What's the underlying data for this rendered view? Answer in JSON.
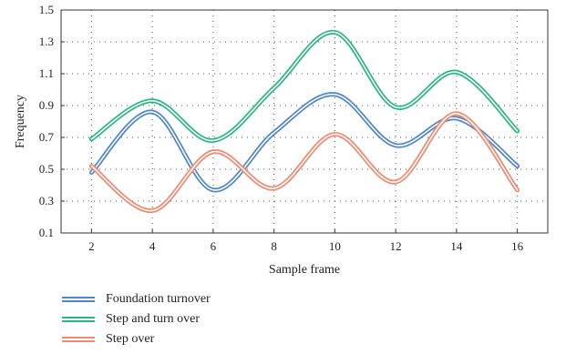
{
  "chart_data": {
    "type": "line",
    "xlabel": "Sample frame",
    "ylabel": "Frequency",
    "xlim": [
      1,
      17
    ],
    "ylim": [
      0.1,
      1.5
    ],
    "xticks": [
      2,
      4,
      6,
      8,
      10,
      12,
      14,
      16
    ],
    "yticks": [
      0.1,
      0.3,
      0.5,
      0.7,
      0.9,
      1.1,
      1.3,
      1.5
    ],
    "ytick_labels": [
      "0.1",
      "0.3",
      "0.5",
      "0.7",
      "0.9",
      "1.1",
      "1.3",
      "1.5"
    ],
    "grid": "dotted",
    "legend_position": "bottom-left",
    "series": [
      {
        "name": "Foundation turnover",
        "color": "#4f86c6",
        "x": [
          2,
          4,
          6,
          8,
          10,
          12,
          14,
          16
        ],
        "values": [
          0.48,
          0.86,
          0.37,
          0.73,
          0.97,
          0.65,
          0.82,
          0.52
        ]
      },
      {
        "name": "Step and turn over",
        "color": "#2bb584",
        "x": [
          2,
          4,
          6,
          8,
          10,
          12,
          14,
          16
        ],
        "values": [
          0.69,
          0.93,
          0.68,
          1.01,
          1.36,
          0.89,
          1.11,
          0.74
        ]
      },
      {
        "name": "Step over",
        "color": "#ee8a72",
        "x": [
          2,
          4,
          6,
          8,
          10,
          12,
          14,
          16
        ],
        "values": [
          0.52,
          0.24,
          0.61,
          0.38,
          0.72,
          0.42,
          0.85,
          0.37
        ]
      }
    ]
  }
}
